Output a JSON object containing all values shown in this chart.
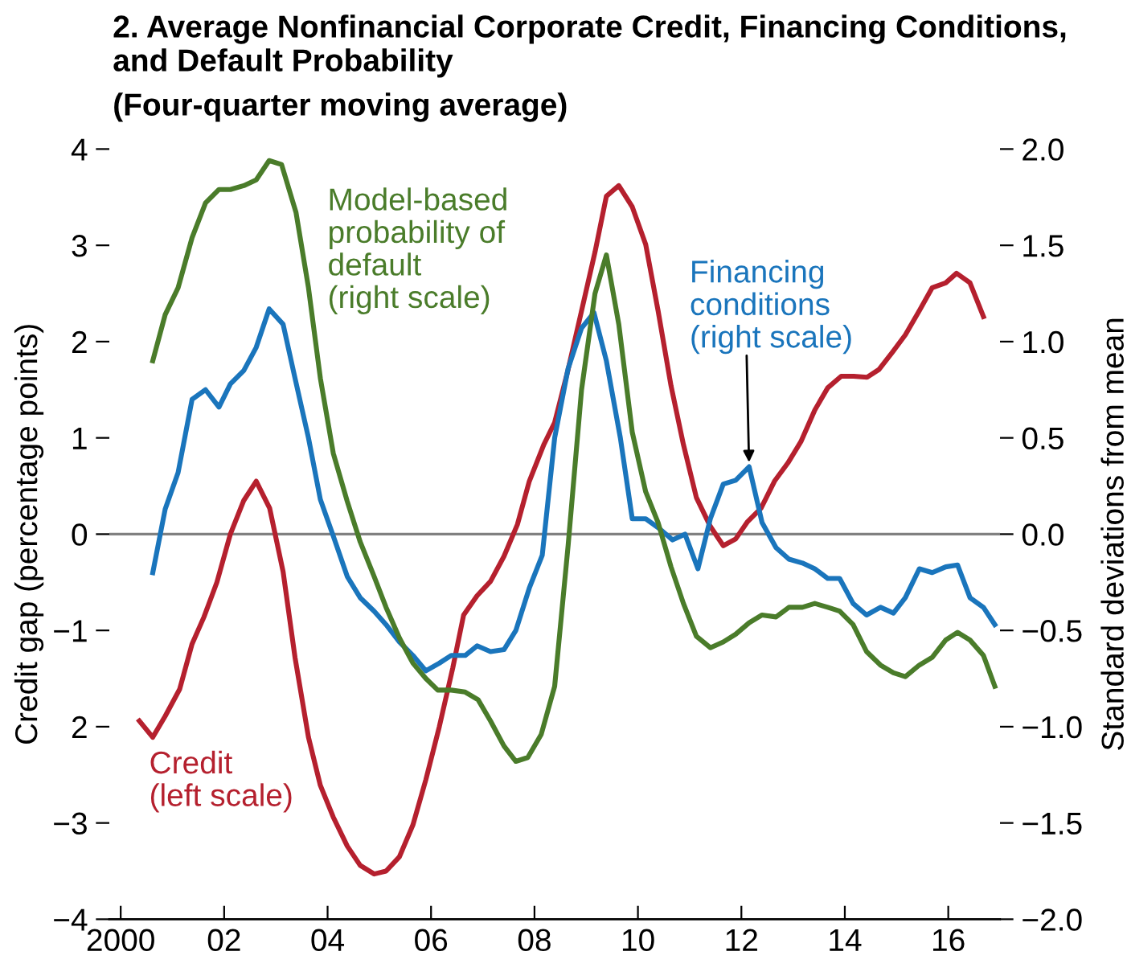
{
  "chart_data": {
    "type": "line",
    "title": "2. Average Nonfinancial Corporate Credit, Financing Conditions, and Default Probability",
    "subtitle": "(Four-quarter moving average)",
    "ylabel": "Credit gap (percentage points)",
    "y2label": "Standard deviations from mean",
    "xlim": [
      1999.78,
      2017.0
    ],
    "xticks": [
      {
        "value": 2000,
        "label": "2000"
      },
      {
        "value": 2002,
        "label": "02"
      },
      {
        "value": 2004,
        "label": "04"
      },
      {
        "value": 2006,
        "label": "06"
      },
      {
        "value": 2008,
        "label": "08"
      },
      {
        "value": 2010,
        "label": "10"
      },
      {
        "value": 2012,
        "label": "12"
      },
      {
        "value": 2014,
        "label": "14"
      },
      {
        "value": 2016,
        "label": "16"
      }
    ],
    "ylim": [
      -4,
      4
    ],
    "yticks": [
      4,
      3,
      2,
      1,
      0,
      {
        "value": -1,
        "label": "−1"
      },
      {
        "value": -2,
        "label": "2"
      },
      {
        "value": -3,
        "label": "−3"
      },
      {
        "value": -4,
        "label": "−4"
      }
    ],
    "y2lim": [
      -2,
      2
    ],
    "y2ticks": [
      {
        "value": 2,
        "label": "2.0"
      },
      {
        "value": 1.5,
        "label": "1.5"
      },
      {
        "value": 1,
        "label": "1.0"
      },
      {
        "value": 0.5,
        "label": "0.5"
      },
      {
        "value": 0,
        "label": "0.0"
      },
      {
        "value": -0.5,
        "label": "−0.5"
      },
      {
        "value": -1,
        "label": "−1.0"
      },
      {
        "value": -1.5,
        "label": "−1.5"
      },
      {
        "value": -2,
        "label": "−2.0"
      }
    ],
    "ref_lines": [
      {
        "axis": "y",
        "value": 0,
        "color": "#808080"
      }
    ],
    "grid": false,
    "legend": false,
    "series": [
      {
        "name": "Credit\n(left scale)",
        "color": "#b5202e",
        "x": [
          2000.36,
          2000.62,
          2000.86,
          2001.14,
          2001.38,
          2001.61,
          2001.86,
          2002.12,
          2002.38,
          2002.62,
          2002.88,
          2003.14,
          2003.37,
          2003.63,
          2003.86,
          2004.11,
          2004.38,
          2004.63,
          2004.9,
          2005.13,
          2005.39,
          2005.65,
          2005.9,
          2006.16,
          2006.42,
          2006.63,
          2006.89,
          2007.15,
          2007.41,
          2007.67,
          2007.9,
          2008.18,
          2008.39,
          2008.65,
          2008.91,
          2009.17,
          2009.39,
          2009.63,
          2009.89,
          2010.15,
          2010.39,
          2010.64,
          2010.88,
          2011.13,
          2011.4,
          2011.65,
          2011.89,
          2012.12,
          2012.38,
          2012.64,
          2012.9,
          2013.15,
          2013.42,
          2013.67,
          2013.93,
          2014.17,
          2014.43,
          2014.66,
          2014.92,
          2015.17,
          2015.44,
          2015.69,
          2015.95,
          2016.16,
          2016.42,
          2016.68
        ],
        "values": [
          -1.94,
          -2.11,
          -1.89,
          -1.61,
          -1.14,
          -0.86,
          -0.5,
          0,
          0.35,
          0.55,
          0.27,
          -0.39,
          -1.28,
          -2.11,
          -2.61,
          -2.94,
          -3.24,
          -3.44,
          -3.53,
          -3.5,
          -3.35,
          -3.02,
          -2.55,
          -2,
          -1.39,
          -0.84,
          -0.64,
          -0.49,
          -0.23,
          0.1,
          0.55,
          0.93,
          1.16,
          1.71,
          2.32,
          2.93,
          3.51,
          3.62,
          3.4,
          3.01,
          2.32,
          1.54,
          0.93,
          0.38,
          0.08,
          -0.12,
          -0.05,
          0.13,
          0.27,
          0.55,
          0.74,
          0.96,
          1.29,
          1.52,
          1.64,
          1.64,
          1.63,
          1.71,
          1.89,
          2.07,
          2.32,
          2.56,
          2.61,
          2.71,
          2.61,
          2.26
        ]
      },
      {
        "name": "Financing\nconditions\n(right scale)",
        "color": "#1a75bc",
        "axis": "y2",
        "x": [
          2000.62,
          2000.86,
          2001.11,
          2001.38,
          2001.64,
          2001.9,
          2002.12,
          2002.38,
          2002.62,
          2002.87,
          2003.14,
          2003.37,
          2003.63,
          2003.86,
          2004.11,
          2004.38,
          2004.63,
          2004.9,
          2005.13,
          2005.39,
          2005.65,
          2005.9,
          2006.16,
          2006.39,
          2006.66,
          2006.89,
          2007.15,
          2007.41,
          2007.64,
          2007.9,
          2008.15,
          2008.39,
          2008.65,
          2008.91,
          2009.15,
          2009.39,
          2009.66,
          2009.89,
          2010.15,
          2010.41,
          2010.67,
          2010.91,
          2011.16,
          2011.4,
          2011.65,
          2011.89,
          2012.15,
          2012.4,
          2012.67,
          2012.92,
          2013.18,
          2013.42,
          2013.67,
          2013.9,
          2014.16,
          2014.42,
          2014.69,
          2014.94,
          2015.17,
          2015.44,
          2015.69,
          2015.95,
          2016.18,
          2016.42,
          2016.68,
          2016.9
        ],
        "values": [
          -0.2,
          0.13,
          0.32,
          0.7,
          0.75,
          0.66,
          0.78,
          0.85,
          0.97,
          1.17,
          1.09,
          0.81,
          0.5,
          0.18,
          -0.01,
          -0.22,
          -0.33,
          -0.4,
          -0.47,
          -0.56,
          -0.63,
          -0.71,
          -0.67,
          -0.63,
          -0.63,
          -0.58,
          -0.61,
          -0.6,
          -0.5,
          -0.28,
          -0.11,
          0.5,
          0.86,
          1.07,
          1.15,
          0.9,
          0.5,
          0.08,
          0.08,
          0.03,
          -0.03,
          0,
          -0.18,
          0.08,
          0.26,
          0.28,
          0.35,
          0.06,
          -0.07,
          -0.13,
          -0.15,
          -0.18,
          -0.23,
          -0.23,
          -0.36,
          -0.42,
          -0.38,
          -0.41,
          -0.33,
          -0.18,
          -0.2,
          -0.17,
          -0.16,
          -0.33,
          -0.38,
          -0.47
        ]
      },
      {
        "name": "Model-based\nprobability of\ndefault\n(right scale)",
        "color": "#4a7c2a",
        "axis": "y2",
        "x": [
          2000.62,
          2000.86,
          2001.11,
          2001.38,
          2001.64,
          2001.9,
          2002.12,
          2002.38,
          2002.62,
          2002.87,
          2003.11,
          2003.39,
          2003.63,
          2003.86,
          2004.11,
          2004.38,
          2004.63,
          2004.9,
          2005.13,
          2005.39,
          2005.65,
          2005.9,
          2006.13,
          2006.39,
          2006.66,
          2006.91,
          2007.15,
          2007.41,
          2007.64,
          2007.87,
          2008.13,
          2008.39,
          2008.65,
          2008.91,
          2009.17,
          2009.39,
          2009.63,
          2009.89,
          2010.15,
          2010.39,
          2010.64,
          2010.88,
          2011.13,
          2011.4,
          2011.65,
          2011.89,
          2012.15,
          2012.4,
          2012.67,
          2012.92,
          2013.18,
          2013.42,
          2013.67,
          2013.9,
          2014.16,
          2014.42,
          2014.69,
          2014.94,
          2015.17,
          2015.44,
          2015.69,
          2015.95,
          2016.18,
          2016.42,
          2016.68,
          2016.9
        ],
        "values": [
          0.9,
          1.14,
          1.28,
          1.54,
          1.72,
          1.79,
          1.79,
          1.81,
          1.84,
          1.94,
          1.92,
          1.67,
          1.28,
          0.81,
          0.42,
          0.17,
          -0.04,
          -0.22,
          -0.38,
          -0.54,
          -0.67,
          -0.75,
          -0.81,
          -0.81,
          -0.82,
          -0.86,
          -0.97,
          -1.1,
          -1.18,
          -1.16,
          -1.04,
          -0.79,
          -0.06,
          0.75,
          1.25,
          1.45,
          1.09,
          0.53,
          0.22,
          0.06,
          -0.17,
          -0.36,
          -0.53,
          -0.59,
          -0.56,
          -0.52,
          -0.46,
          -0.42,
          -0.43,
          -0.38,
          -0.38,
          -0.36,
          -0.38,
          -0.4,
          -0.47,
          -0.61,
          -0.68,
          -0.72,
          -0.74,
          -0.68,
          -0.64,
          -0.55,
          -0.51,
          -0.55,
          -0.63,
          -0.79
        ]
      }
    ]
  }
}
